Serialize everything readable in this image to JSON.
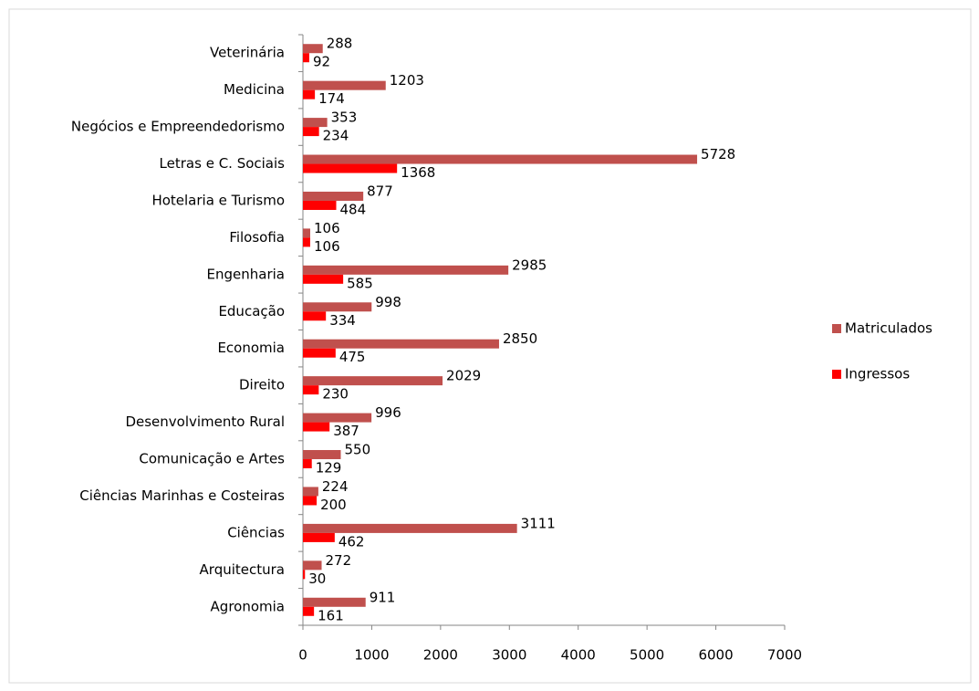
{
  "chart_data": {
    "type": "bar",
    "orientation": "horizontal",
    "categories": [
      "Veterinária",
      "Medicina",
      "Negócios e Empreendedorismo",
      "Letras e C. Sociais",
      "Hotelaria e Turismo",
      "Filosofia",
      "Engenharia",
      "Educação",
      "Economia",
      "Direito",
      "Desenvolvimento Rural",
      "Comunicação e Artes",
      "Ciências Marinhas e Costeiras",
      "Ciências",
      "Arquitectura",
      "Agronomia"
    ],
    "series": [
      {
        "name": "Matriculados",
        "color": "#c0504d",
        "values": [
          288,
          1203,
          353,
          5728,
          877,
          106,
          2985,
          998,
          2850,
          2029,
          996,
          550,
          224,
          3111,
          272,
          911
        ]
      },
      {
        "name": "Ingressos",
        "color": "#ff0000",
        "values": [
          92,
          174,
          234,
          1368,
          484,
          106,
          585,
          334,
          475,
          230,
          387,
          129,
          200,
          462,
          30,
          161
        ]
      }
    ],
    "xlim": [
      0,
      7000
    ],
    "xticks": [
      0,
      1000,
      2000,
      3000,
      4000,
      5000,
      6000,
      7000
    ],
    "grid": false,
    "legend": "right"
  }
}
